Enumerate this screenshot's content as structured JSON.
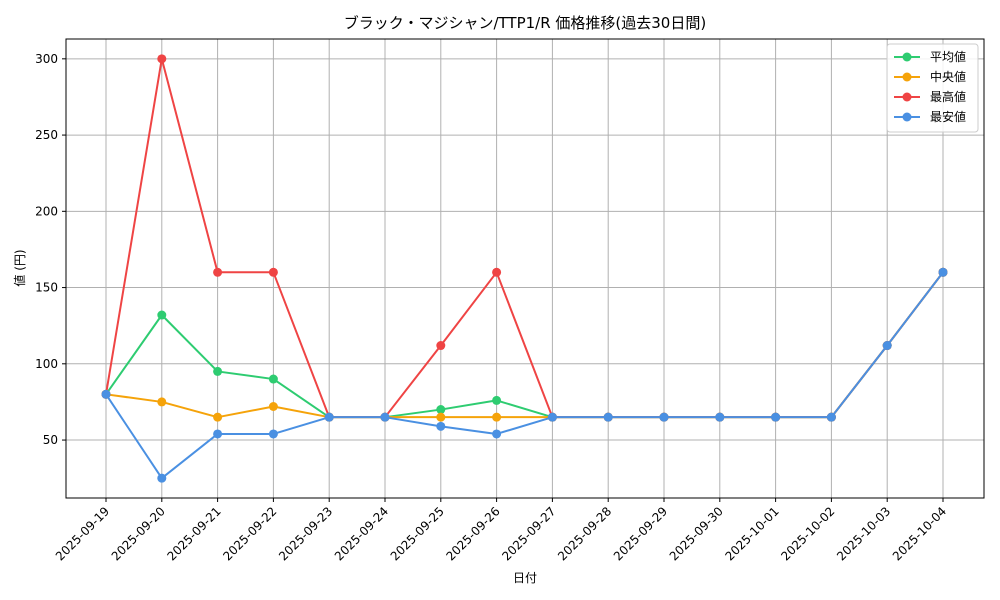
{
  "chart_data": {
    "type": "line",
    "title": "ブラック・マジシャン/TTP1/R 価格推移(過去30日間)",
    "xlabel": "日付",
    "ylabel": "値 (円)",
    "categories": [
      "2025-09-19",
      "2025-09-20",
      "2025-09-21",
      "2025-09-22",
      "2025-09-23",
      "2025-09-24",
      "2025-09-25",
      "2025-09-26",
      "2025-09-27",
      "2025-09-28",
      "2025-09-29",
      "2025-09-30",
      "2025-10-01",
      "2025-10-02",
      "2025-10-03",
      "2025-10-04"
    ],
    "yticks": [
      50,
      100,
      150,
      200,
      250,
      300
    ],
    "ylim": [
      12,
      313
    ],
    "grid": true,
    "legend_position": "top-right",
    "series": [
      {
        "name": "平均値",
        "color": "#2ecc71",
        "values": [
          80,
          132,
          95,
          90,
          65,
          65,
          70,
          76,
          65,
          65,
          65,
          65,
          65,
          65,
          112,
          160
        ]
      },
      {
        "name": "中央値",
        "color": "#f5a30a",
        "values": [
          80,
          75,
          65,
          72,
          65,
          65,
          65,
          65,
          65,
          65,
          65,
          65,
          65,
          65,
          112,
          160
        ]
      },
      {
        "name": "最高値",
        "color": "#ef4444",
        "values": [
          80,
          300,
          160,
          160,
          65,
          65,
          112,
          160,
          65,
          65,
          65,
          65,
          65,
          65,
          112,
          160
        ]
      },
      {
        "name": "最安値",
        "color": "#4a90e2",
        "values": [
          80,
          25,
          54,
          54,
          65,
          65,
          59,
          54,
          65,
          65,
          65,
          65,
          65,
          65,
          112,
          160
        ]
      }
    ]
  }
}
